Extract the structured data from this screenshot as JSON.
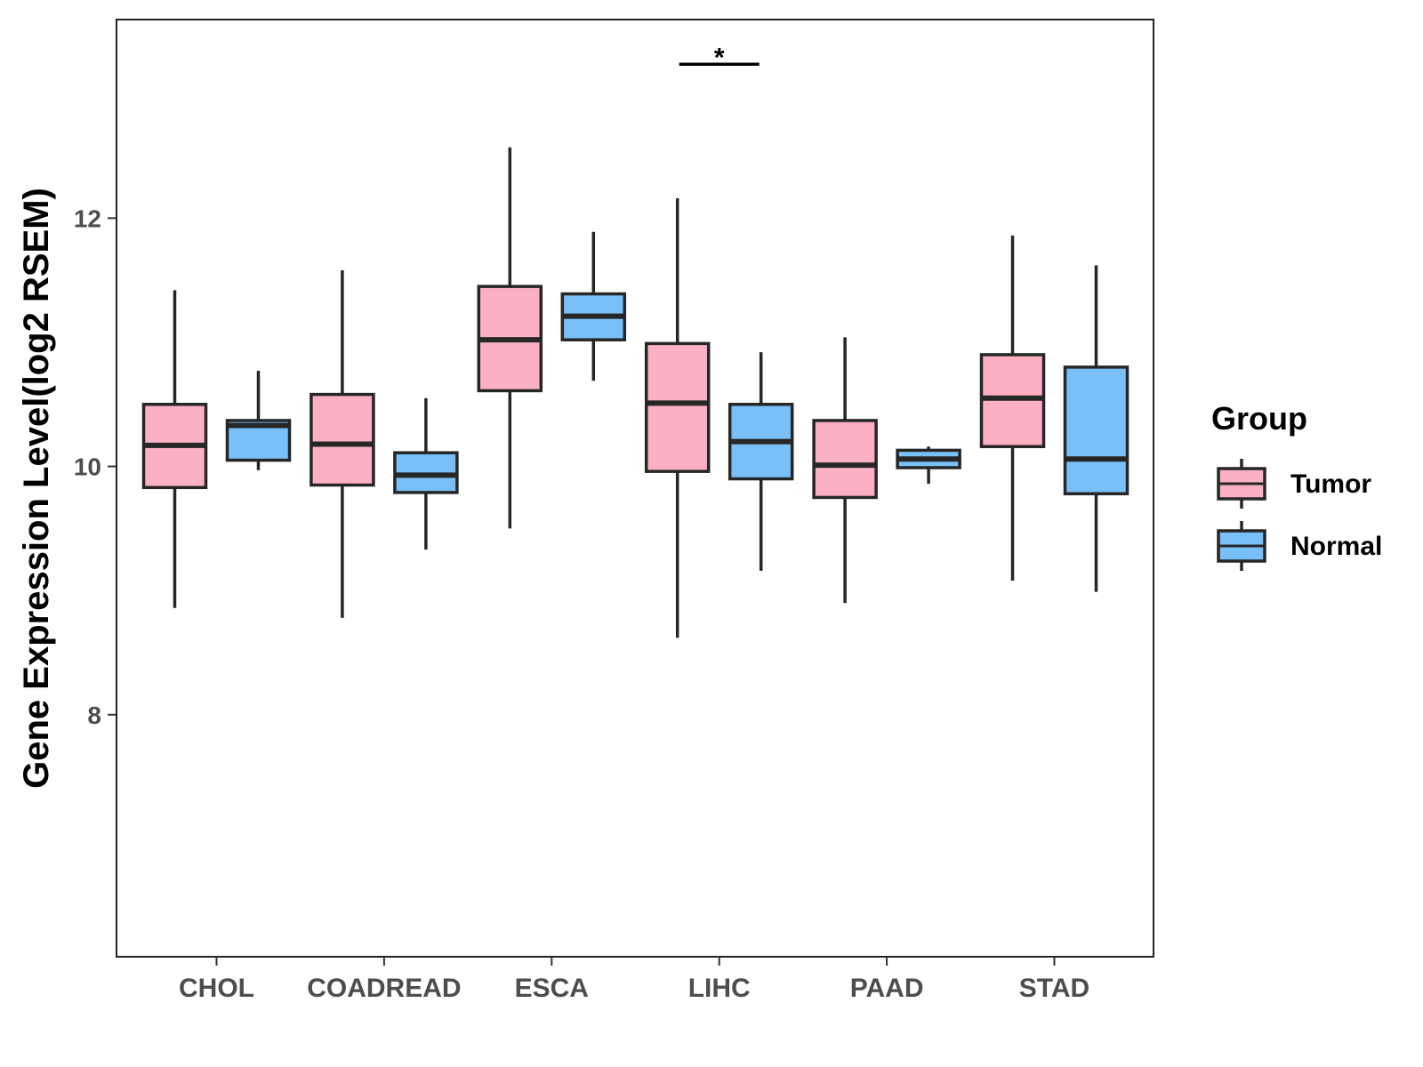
{
  "chart_data": {
    "type": "boxplot",
    "title": "",
    "xlabel": "",
    "ylabel": "Gene Expression Level(log2 RSEM)",
    "ylim": [
      6.05,
      13.6
    ],
    "yticks": [
      8,
      10,
      12
    ],
    "grid": false,
    "categories": [
      "CHOL",
      "COADREAD",
      "ESCA",
      "LIHC",
      "PAAD",
      "STAD"
    ],
    "legend": {
      "title": "Group",
      "position": "right",
      "items": [
        {
          "name": "Tumor",
          "color": "#fbb1c3"
        },
        {
          "name": "Normal",
          "color": "#79c0f8"
        }
      ]
    },
    "series": [
      {
        "name": "Tumor",
        "color": "#fbb1c3",
        "boxes": [
          {
            "category": "CHOL",
            "whisker_low": 8.86,
            "q1": 9.83,
            "median": 10.17,
            "q3": 10.5,
            "whisker_high": 11.42
          },
          {
            "category": "COADREAD",
            "whisker_low": 8.78,
            "q1": 9.85,
            "median": 10.18,
            "q3": 10.58,
            "whisker_high": 11.58
          },
          {
            "category": "ESCA",
            "whisker_low": 9.5,
            "q1": 10.61,
            "median": 11.02,
            "q3": 11.45,
            "whisker_high": 12.57
          },
          {
            "category": "LIHC",
            "whisker_low": 8.62,
            "q1": 9.96,
            "median": 10.51,
            "q3": 10.99,
            "whisker_high": 12.16
          },
          {
            "category": "PAAD",
            "whisker_low": 8.9,
            "q1": 9.75,
            "median": 10.01,
            "q3": 10.37,
            "whisker_high": 11.04
          },
          {
            "category": "STAD",
            "whisker_low": 9.08,
            "q1": 10.16,
            "median": 10.55,
            "q3": 10.9,
            "whisker_high": 11.86
          }
        ]
      },
      {
        "name": "Normal",
        "color": "#79c0f8",
        "boxes": [
          {
            "category": "CHOL",
            "whisker_low": 9.97,
            "q1": 10.05,
            "median": 10.33,
            "q3": 10.37,
            "whisker_high": 10.77
          },
          {
            "category": "COADREAD",
            "whisker_low": 9.33,
            "q1": 9.79,
            "median": 9.93,
            "q3": 10.11,
            "whisker_high": 10.55
          },
          {
            "category": "ESCA",
            "whisker_low": 10.69,
            "q1": 11.02,
            "median": 11.21,
            "q3": 11.39,
            "whisker_high": 11.89
          },
          {
            "category": "LIHC",
            "whisker_low": 9.16,
            "q1": 9.9,
            "median": 10.2,
            "q3": 10.5,
            "whisker_high": 10.92
          },
          {
            "category": "PAAD",
            "whisker_low": 9.86,
            "q1": 9.99,
            "median": 10.06,
            "q3": 10.13,
            "whisker_high": 10.16
          },
          {
            "category": "STAD",
            "whisker_low": 8.99,
            "q1": 9.78,
            "median": 10.06,
            "q3": 10.8,
            "whisker_high": 11.62
          }
        ]
      }
    ],
    "annotations": [
      {
        "category": "LIHC",
        "label": "*",
        "y": 13.24
      }
    ]
  }
}
